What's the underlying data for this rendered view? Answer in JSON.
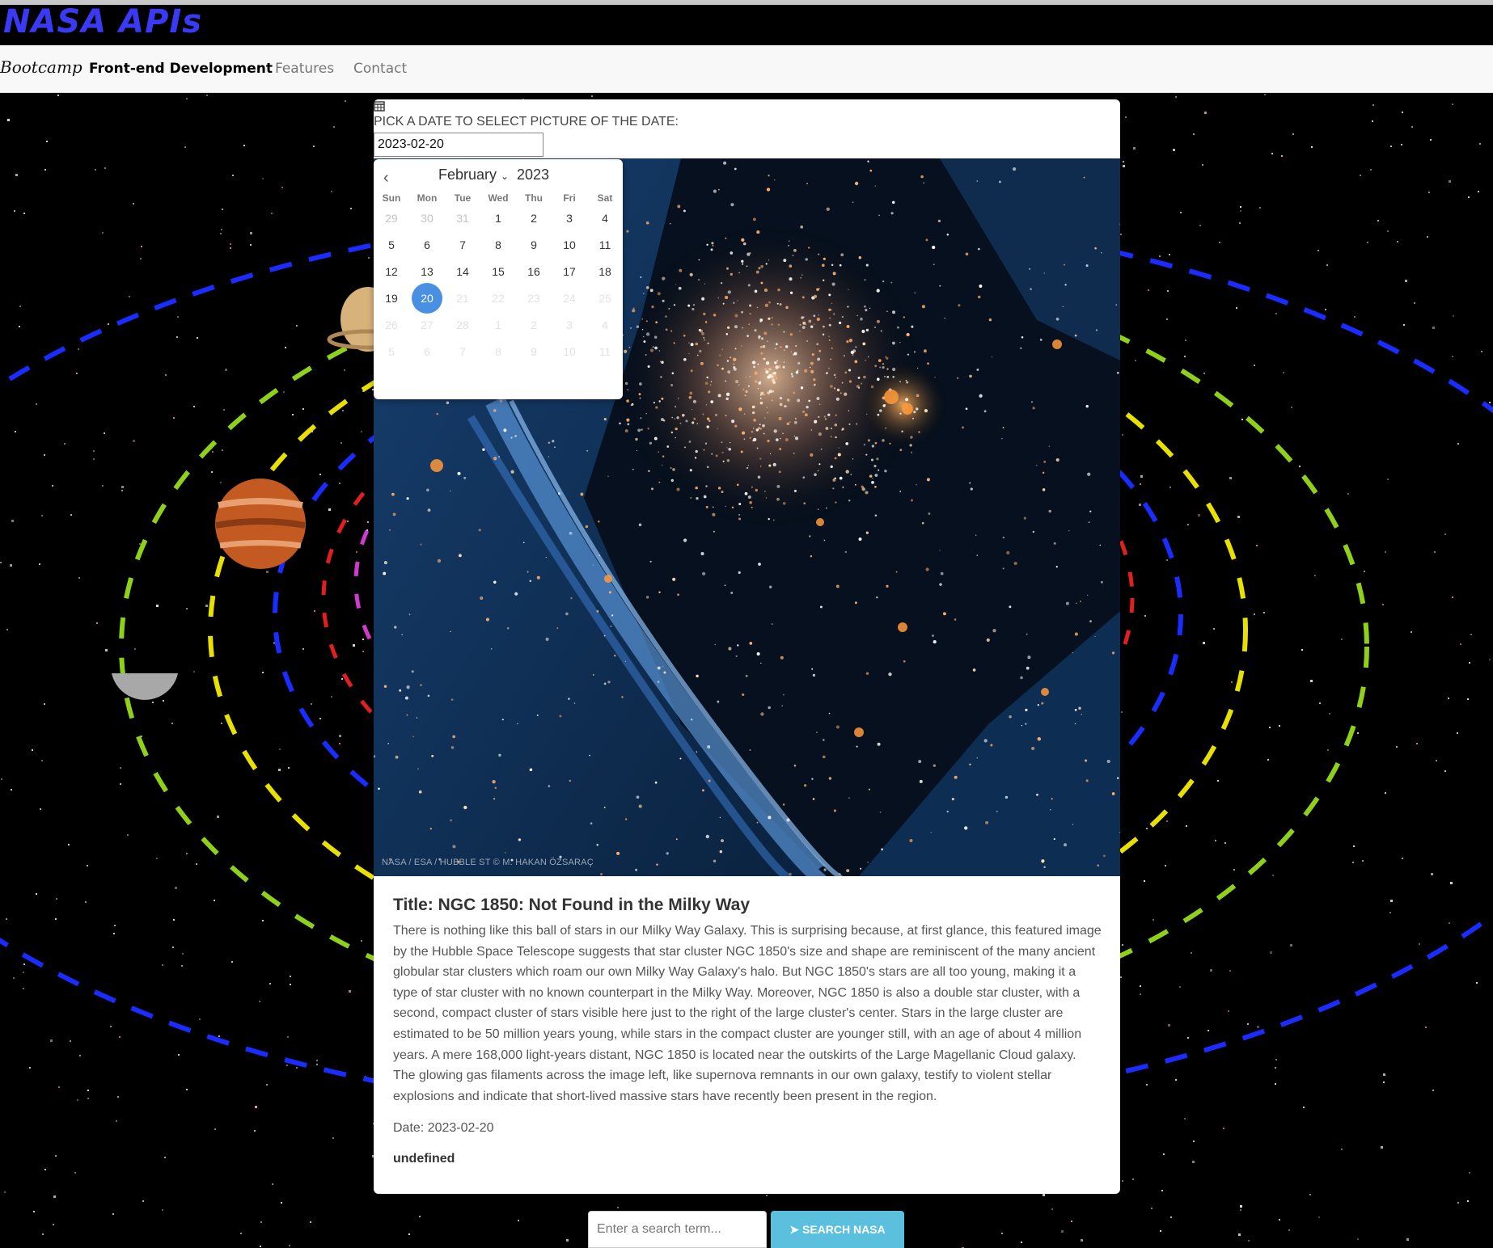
{
  "site": {
    "title": "NASA APIs"
  },
  "navbar": {
    "brand": "Bootcamp",
    "links": [
      "Front-end Development",
      "Features",
      "Contact"
    ]
  },
  "picker": {
    "label": "PICK A DATE TO SELECT PICTURE OF THE DATE:",
    "value": "2023-02-20",
    "calendar": {
      "month": "February",
      "year": "2023",
      "weekdays": [
        "Sun",
        "Mon",
        "Tue",
        "Wed",
        "Thu",
        "Fri",
        "Sat"
      ],
      "selected_day": "20",
      "weeks": [
        [
          "29",
          "30",
          "31",
          "1",
          "2",
          "3",
          "4"
        ],
        [
          "5",
          "6",
          "7",
          "8",
          "9",
          "10",
          "11"
        ],
        [
          "12",
          "13",
          "14",
          "15",
          "16",
          "17",
          "18"
        ],
        [
          "19",
          "20",
          "21",
          "22",
          "23",
          "24",
          "25"
        ],
        [
          "26",
          "27",
          "28",
          "1",
          "2",
          "3",
          "4"
        ],
        [
          "5",
          "6",
          "7",
          "8",
          "9",
          "10",
          "11"
        ]
      ]
    }
  },
  "apod": {
    "credit": "NASA / ESA / HUBBLE ST © M. HAKAN ÖZSARAÇ",
    "title": "Title: NGC 1850: Not Found in the Milky Way",
    "explanation": "There is nothing like this ball of stars in our Milky Way Galaxy. This is surprising because, at first glance, this featured image by the Hubble Space Telescope suggests that star cluster NGC 1850's size and shape are reminiscent of the many ancient globular star clusters which roam our own Milky Way Galaxy's halo. But NGC 1850's stars are all too young, making it a type of star cluster with no known counterpart in the Milky Way. Moreover, NGC 1850 is also a double star cluster, with a second, compact cluster of stars visible here just to the right of the large cluster's center. Stars in the large cluster are estimated to be 50 million years young, while stars in the compact cluster are younger still, with an age of about 4 million years. A mere 168,000 light-years distant, NGC 1850 is located near the outskirts of the Large Magellanic Cloud galaxy. The glowing gas filaments across the image left, like supernova remnants in our own galaxy, testify to violent stellar explosions and indicate that short-lived massive stars have recently been present in the region.",
    "date": "Date: 2023-02-20",
    "extra": "undefined"
  },
  "search": {
    "placeholder": "Enter a search term...",
    "button_label": "SEARCH NASA"
  },
  "colors": {
    "title": "#3a3af5",
    "selected_day": "#4a90e2",
    "search_button": "#5bc0de"
  }
}
